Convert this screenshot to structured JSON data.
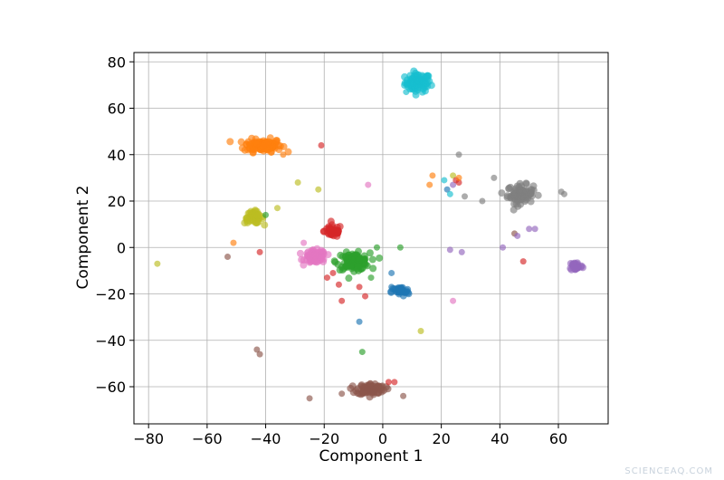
{
  "chart_data": {
    "type": "scatter",
    "xlabel": "Component 1",
    "ylabel": "Component 2",
    "xlim": [
      -85,
      77
    ],
    "ylim": [
      -76,
      84
    ],
    "xticks": [
      -80,
      -60,
      -40,
      -20,
      0,
      20,
      40,
      60
    ],
    "yticks": [
      -60,
      -40,
      -20,
      0,
      20,
      40,
      60,
      80
    ],
    "grid": true,
    "point_opacity": 0.65,
    "clusters": [
      {
        "name": "cyan",
        "color": "#17becf",
        "center": [
          12,
          71
        ],
        "spread": [
          2.2,
          2.0
        ],
        "count": 90
      },
      {
        "name": "orange",
        "color": "#ff7f0e",
        "center": [
          -41,
          44
        ],
        "spread": [
          3.2,
          1.4
        ],
        "count": 110
      },
      {
        "name": "gray",
        "color": "#7f7f7f",
        "center": [
          47,
          23
        ],
        "spread": [
          2.2,
          2.0
        ],
        "count": 90
      },
      {
        "name": "olive",
        "color": "#bcbd22",
        "center": [
          -44,
          13
        ],
        "spread": [
          1.6,
          1.3
        ],
        "count": 50
      },
      {
        "name": "red",
        "color": "#d62728",
        "center": [
          -17,
          7
        ],
        "spread": [
          1.5,
          1.3
        ],
        "count": 50
      },
      {
        "name": "pink",
        "color": "#e377c2",
        "center": [
          -23,
          -4
        ],
        "spread": [
          1.8,
          1.4
        ],
        "count": 90
      },
      {
        "name": "green",
        "color": "#2ca02c",
        "center": [
          -10,
          -6
        ],
        "spread": [
          2.8,
          1.8
        ],
        "count": 100
      },
      {
        "name": "blue",
        "color": "#1f77b4",
        "center": [
          6,
          -19
        ],
        "spread": [
          1.5,
          1.0
        ],
        "count": 40
      },
      {
        "name": "purple",
        "color": "#9467bd",
        "center": [
          66,
          -8
        ],
        "spread": [
          1.1,
          1.0
        ],
        "count": 35
      },
      {
        "name": "brown",
        "color": "#8c564b",
        "center": [
          -4,
          -61
        ],
        "spread": [
          2.4,
          1.2
        ],
        "count": 90
      }
    ],
    "points": [
      {
        "x": -77,
        "y": -7,
        "color": "#bcbd22"
      },
      {
        "x": -53,
        "y": -4,
        "color": "#8c564b"
      },
      {
        "x": -51,
        "y": 2,
        "color": "#ff7f0e"
      },
      {
        "x": -42,
        "y": -2,
        "color": "#d62728"
      },
      {
        "x": -36,
        "y": 17,
        "color": "#bcbd22"
      },
      {
        "x": -29,
        "y": 28,
        "color": "#bcbd22"
      },
      {
        "x": -22,
        "y": 25,
        "color": "#bcbd22"
      },
      {
        "x": -21,
        "y": 44,
        "color": "#d62728"
      },
      {
        "x": -27,
        "y": 2,
        "color": "#e377c2"
      },
      {
        "x": -34,
        "y": 40,
        "color": "#ff7f0e"
      },
      {
        "x": -38,
        "y": 41,
        "color": "#ff7f0e"
      },
      {
        "x": -40,
        "y": 14,
        "color": "#2ca02c"
      },
      {
        "x": -19,
        "y": -13,
        "color": "#d62728"
      },
      {
        "x": -17,
        "y": -11,
        "color": "#d62728"
      },
      {
        "x": -15,
        "y": -16,
        "color": "#d62728"
      },
      {
        "x": -14,
        "y": -23,
        "color": "#d62728"
      },
      {
        "x": -8,
        "y": -17,
        "color": "#d62728"
      },
      {
        "x": -6,
        "y": -21,
        "color": "#d62728"
      },
      {
        "x": -8,
        "y": -32,
        "color": "#1f77b4"
      },
      {
        "x": -7,
        "y": -45,
        "color": "#2ca02c"
      },
      {
        "x": -2,
        "y": 0,
        "color": "#2ca02c"
      },
      {
        "x": 6,
        "y": 0,
        "color": "#2ca02c"
      },
      {
        "x": -4,
        "y": -13,
        "color": "#2ca02c"
      },
      {
        "x": -5,
        "y": 27,
        "color": "#e377c2"
      },
      {
        "x": 3,
        "y": -11,
        "color": "#1f77b4"
      },
      {
        "x": 3,
        "y": -17,
        "color": "#1f77b4"
      },
      {
        "x": 13,
        "y": -36,
        "color": "#bcbd22"
      },
      {
        "x": -43,
        "y": -44,
        "color": "#8c564b"
      },
      {
        "x": -42,
        "y": -46,
        "color": "#8c564b"
      },
      {
        "x": -25,
        "y": -65,
        "color": "#8c564b"
      },
      {
        "x": -14,
        "y": -63,
        "color": "#8c564b"
      },
      {
        "x": 2,
        "y": -58,
        "color": "#d62728"
      },
      {
        "x": 4,
        "y": -58,
        "color": "#d62728"
      },
      {
        "x": 7,
        "y": -64,
        "color": "#8c564b"
      },
      {
        "x": 8,
        "y": 67,
        "color": "#17becf"
      },
      {
        "x": 16,
        "y": 27,
        "color": "#ff7f0e"
      },
      {
        "x": 17,
        "y": 31,
        "color": "#ff7f0e"
      },
      {
        "x": 21,
        "y": 29,
        "color": "#17becf"
      },
      {
        "x": 22,
        "y": 25,
        "color": "#1f77b4"
      },
      {
        "x": 23,
        "y": 23,
        "color": "#17becf"
      },
      {
        "x": 24,
        "y": 27,
        "color": "#9467bd"
      },
      {
        "x": 24,
        "y": 31,
        "color": "#bcbd22"
      },
      {
        "x": 25,
        "y": 29,
        "color": "#d62728"
      },
      {
        "x": 26,
        "y": 28,
        "color": "#d62728"
      },
      {
        "x": 26,
        "y": 30,
        "color": "#ff7f0e"
      },
      {
        "x": 26,
        "y": 40,
        "color": "#7f7f7f"
      },
      {
        "x": 28,
        "y": 22,
        "color": "#7f7f7f"
      },
      {
        "x": 34,
        "y": 20,
        "color": "#7f7f7f"
      },
      {
        "x": 38,
        "y": 30,
        "color": "#7f7f7f"
      },
      {
        "x": 23,
        "y": -1,
        "color": "#9467bd"
      },
      {
        "x": 27,
        "y": -2,
        "color": "#9467bd"
      },
      {
        "x": 24,
        "y": -23,
        "color": "#e377c2"
      },
      {
        "x": 41,
        "y": 0,
        "color": "#9467bd"
      },
      {
        "x": 45,
        "y": 6,
        "color": "#8c564b"
      },
      {
        "x": 46,
        "y": 5,
        "color": "#9467bd"
      },
      {
        "x": 48,
        "y": -6,
        "color": "#d62728"
      },
      {
        "x": 50,
        "y": 8,
        "color": "#9467bd"
      },
      {
        "x": 52,
        "y": 8,
        "color": "#9467bd"
      },
      {
        "x": 61,
        "y": 24,
        "color": "#7f7f7f"
      },
      {
        "x": 62,
        "y": 23,
        "color": "#7f7f7f"
      }
    ]
  },
  "watermark": "SCIENCEAQ.COM"
}
